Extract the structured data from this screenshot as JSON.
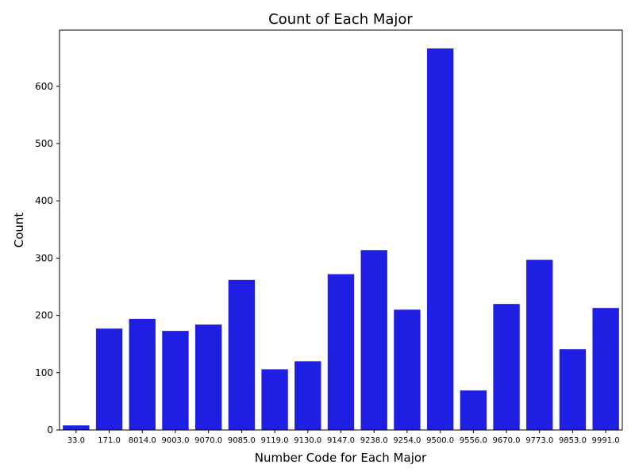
{
  "chart_data": {
    "type": "bar",
    "title": "Count of Each Major",
    "xlabel": "Number Code for Each Major",
    "ylabel": "Count",
    "categories": [
      "33.0",
      "171.0",
      "8014.0",
      "9003.0",
      "9070.0",
      "9085.0",
      "9119.0",
      "9130.0",
      "9147.0",
      "9238.0",
      "9254.0",
      "9500.0",
      "9556.0",
      "9670.0",
      "9773.0",
      "9853.0",
      "9991.0"
    ],
    "values": [
      8,
      177,
      194,
      173,
      184,
      262,
      106,
      120,
      272,
      314,
      210,
      666,
      69,
      220,
      297,
      141,
      213
    ],
    "ylim": [
      0,
      698
    ],
    "yticks": [
      "0",
      "100",
      "200",
      "300",
      "400",
      "500",
      "600"
    ],
    "bar_color": "#1f1fe3",
    "grid": false,
    "legend": "none"
  }
}
